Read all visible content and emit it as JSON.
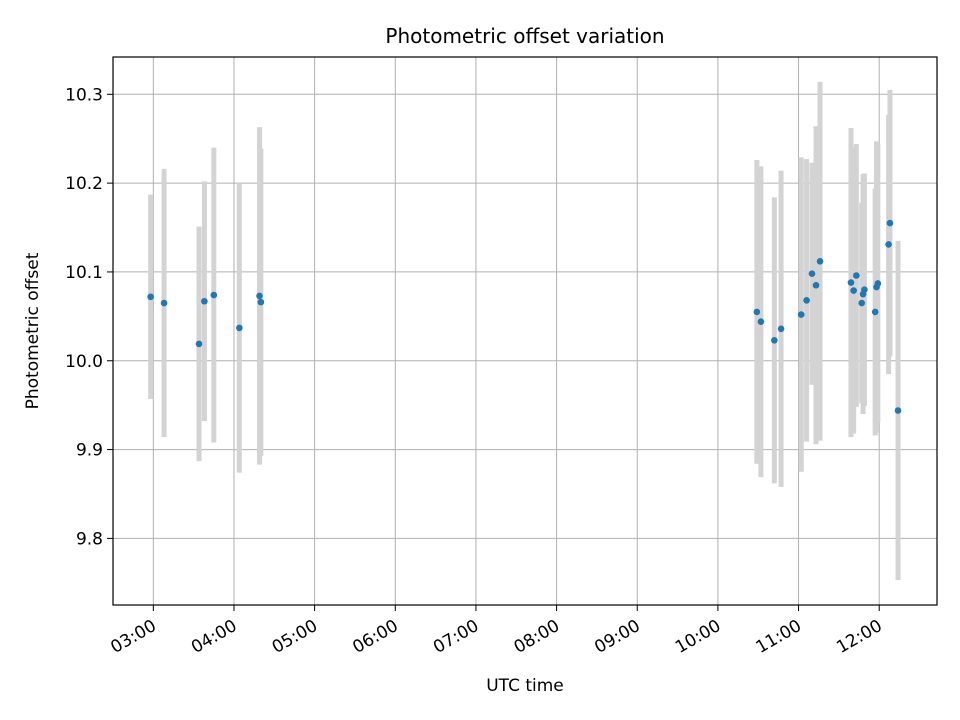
{
  "chart_data": {
    "type": "scatter",
    "title": "Photometric offset variation",
    "xlabel": "UTC time",
    "ylabel": "Photometric offset",
    "xlim": [
      "02:30",
      "12:43"
    ],
    "ylim": [
      9.725,
      10.342
    ],
    "grid": true,
    "x_ticks": [
      "03:00",
      "04:00",
      "05:00",
      "06:00",
      "07:00",
      "08:00",
      "09:00",
      "10:00",
      "11:00",
      "12:00"
    ],
    "y_ticks": [
      9.8,
      9.9,
      10.0,
      10.1,
      10.2,
      10.3
    ],
    "y_tick_labels": [
      "9.8",
      "9.9",
      "10.0",
      "10.1",
      "10.2",
      "10.3"
    ],
    "colors": {
      "point": "#1f77b4",
      "errorbar": "#d3d3d3",
      "grid": "#b0b0b0"
    },
    "series": [
      {
        "points": [
          {
            "x": "02:58",
            "y": 10.072,
            "err": 0.115
          },
          {
            "x": "03:08",
            "y": 10.065,
            "err": 0.151
          },
          {
            "x": "03:34",
            "y": 10.019,
            "err": 0.132
          },
          {
            "x": "03:38",
            "y": 10.067,
            "err": 0.135
          },
          {
            "x": "03:45",
            "y": 10.074,
            "err": 0.166
          },
          {
            "x": "04:04",
            "y": 10.037,
            "err": 0.163
          },
          {
            "x": "04:19",
            "y": 10.073,
            "err": 0.19
          },
          {
            "x": "04:20",
            "y": 10.066,
            "err": 0.173
          },
          {
            "x": "10:29",
            "y": 10.055,
            "err": 0.171
          },
          {
            "x": "10:32",
            "y": 10.044,
            "err": 0.175
          },
          {
            "x": "10:42",
            "y": 10.023,
            "err": 0.161
          },
          {
            "x": "10:47",
            "y": 10.036,
            "err": 0.178
          },
          {
            "x": "11:02",
            "y": 10.052,
            "err": 0.177
          },
          {
            "x": "11:06",
            "y": 10.068,
            "err": 0.159
          },
          {
            "x": "11:10",
            "y": 10.098,
            "err": 0.125
          },
          {
            "x": "11:13",
            "y": 10.085,
            "err": 0.179
          },
          {
            "x": "11:16",
            "y": 10.112,
            "err": 0.202
          },
          {
            "x": "11:39",
            "y": 10.088,
            "err": 0.174
          },
          {
            "x": "11:41",
            "y": 10.079,
            "err": 0.161
          },
          {
            "x": "11:43",
            "y": 10.096,
            "err": 0.148
          },
          {
            "x": "11:47",
            "y": 10.065,
            "err": 0.113
          },
          {
            "x": "11:48",
            "y": 10.075,
            "err": 0.135
          },
          {
            "x": "11:49",
            "y": 10.08,
            "err": 0.131
          },
          {
            "x": "11:57",
            "y": 10.055,
            "err": 0.139
          },
          {
            "x": "11:58",
            "y": 10.083,
            "err": 0.164
          },
          {
            "x": "11:59",
            "y": 10.087,
            "err": 0.157
          },
          {
            "x": "12:07",
            "y": 10.131,
            "err": 0.146
          },
          {
            "x": "12:08",
            "y": 10.155,
            "err": 0.15
          },
          {
            "x": "12:14",
            "y": 9.944,
            "err": 0.191
          }
        ]
      }
    ]
  }
}
